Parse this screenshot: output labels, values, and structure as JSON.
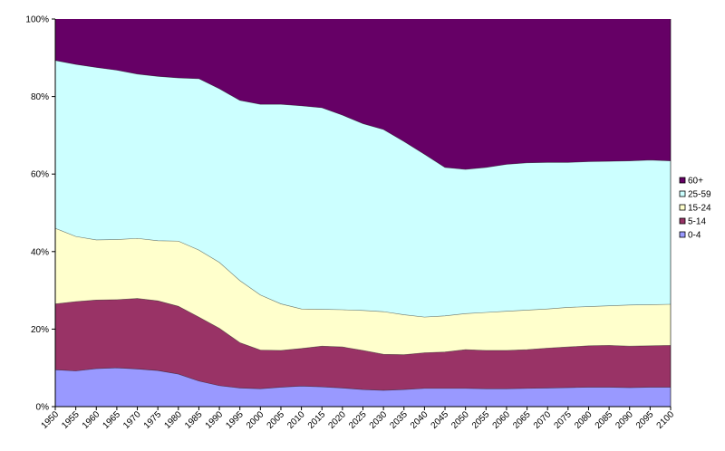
{
  "chart_data": {
    "type": "area",
    "stacked": true,
    "normalized": true,
    "x": [
      "1950",
      "1955",
      "1960",
      "1965",
      "1970",
      "1975",
      "1980",
      "1985",
      "1990",
      "1995",
      "2000",
      "2005",
      "2010",
      "2015",
      "2020",
      "2025",
      "2030",
      "2035",
      "2040",
      "2045",
      "2050",
      "2055",
      "2060",
      "2065",
      "2070",
      "2075",
      "2080",
      "2085",
      "2090",
      "2095",
      "2100"
    ],
    "ylim": [
      0,
      100
    ],
    "yticks": [
      "0%",
      "20%",
      "40%",
      "60%",
      "80%",
      "100%"
    ],
    "series": [
      {
        "name": "0-4",
        "color": "#9999ff",
        "values": [
          9.5,
          9.2,
          9.8,
          10.0,
          9.7,
          9.3,
          8.4,
          6.6,
          5.4,
          4.8,
          4.6,
          5.0,
          5.3,
          5.1,
          4.8,
          4.4,
          4.2,
          4.4,
          4.7,
          4.7,
          4.7,
          4.6,
          4.6,
          4.7,
          4.8,
          4.9,
          5.0,
          5.0,
          4.9,
          5.0,
          5.0
        ]
      },
      {
        "name": "5-14",
        "color": "#993366",
        "values": [
          17.0,
          17.9,
          17.7,
          17.6,
          18.2,
          18.0,
          17.5,
          16.5,
          14.8,
          11.7,
          10.0,
          9.5,
          9.7,
          10.5,
          10.6,
          10.1,
          9.3,
          9.0,
          9.2,
          9.4,
          10.0,
          9.9,
          9.9,
          10.0,
          10.3,
          10.5,
          10.7,
          10.8,
          10.7,
          10.7,
          10.8
        ]
      },
      {
        "name": "15-24",
        "color": "#ffffcc",
        "values": [
          19.5,
          16.8,
          15.5,
          15.5,
          15.5,
          15.5,
          16.8,
          17.3,
          17.0,
          16.0,
          14.2,
          12.0,
          10.2,
          9.5,
          9.6,
          10.3,
          11.0,
          10.3,
          9.2,
          9.3,
          9.3,
          9.8,
          10.1,
          10.2,
          10.1,
          10.2,
          10.1,
          10.2,
          10.6,
          10.6,
          10.6
        ]
      },
      {
        "name": "25-59",
        "color": "#ccffff",
        "values": [
          43.3,
          44.4,
          44.5,
          43.7,
          42.4,
          42.4,
          42.1,
          44.2,
          44.8,
          46.5,
          49.2,
          51.5,
          52.4,
          52.0,
          50.2,
          48.2,
          47.0,
          44.7,
          42.0,
          38.3,
          37.2,
          37.4,
          37.9,
          38.0,
          37.8,
          37.4,
          37.4,
          37.3,
          37.2,
          37.3,
          37.0
        ]
      },
      {
        "name": "60+",
        "color": "#660066",
        "values": [
          10.7,
          11.7,
          12.5,
          13.2,
          14.2,
          14.8,
          15.2,
          15.4,
          18.0,
          21.0,
          22.0,
          22.0,
          22.4,
          22.9,
          24.8,
          27.0,
          28.5,
          31.6,
          34.9,
          38.3,
          38.8,
          38.3,
          37.5,
          37.1,
          37.0,
          37.0,
          36.8,
          36.7,
          36.6,
          36.4,
          36.6
        ]
      }
    ],
    "legend_position": "right",
    "legend": [
      "60+",
      "25-59",
      "15-24",
      "5-14",
      "0-4"
    ]
  }
}
